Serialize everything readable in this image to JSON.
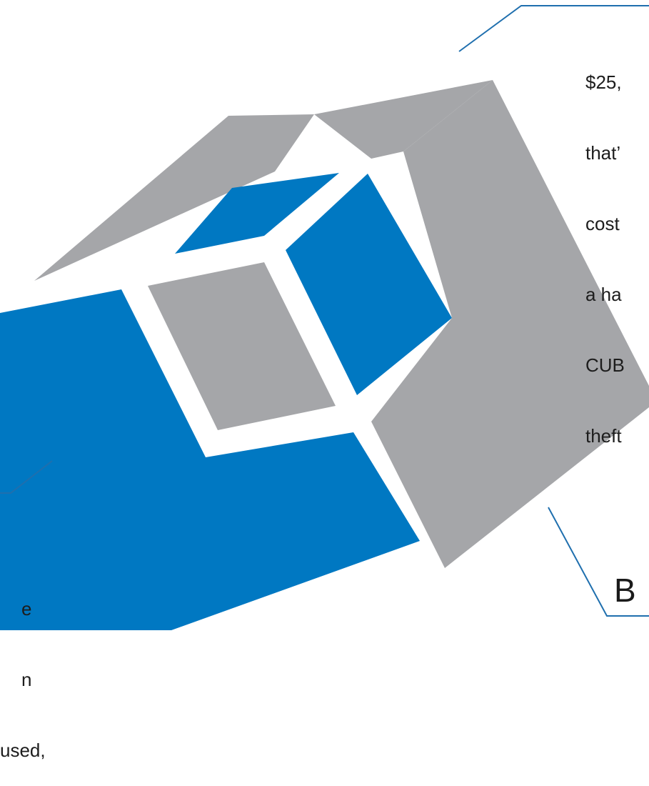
{
  "colors": {
    "blue": "#0078c2",
    "gray": "#a5a6a9",
    "text": "#1d1d1d",
    "line": "#1f6fae"
  },
  "callouts": {
    "top_right_lines": [
      "$25,",
      "that’",
      "cost",
      "a ha",
      "CUB",
      "theft"
    ],
    "bottom_left_lines": [
      "e",
      "n",
      "used,"
    ],
    "bottom_right_letter": "B"
  }
}
